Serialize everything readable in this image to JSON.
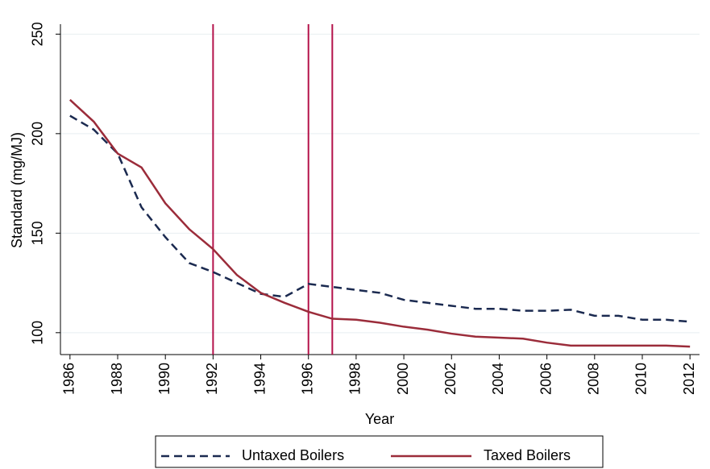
{
  "chart_data": {
    "type": "line",
    "x_label": "Year",
    "y_label": "Standard (mg/MJ)",
    "x": [
      1986,
      1987,
      1988,
      1989,
      1990,
      1991,
      1992,
      1993,
      1994,
      1995,
      1996,
      1997,
      1998,
      1999,
      2000,
      2001,
      2002,
      2003,
      2004,
      2005,
      2006,
      2007,
      2008,
      2009,
      2010,
      2011,
      2012
    ],
    "series": [
      {
        "name": "Untaxed Boilers",
        "color": "#1b2a50",
        "dash": true,
        "values": [
          209,
          202,
          190,
          163,
          148,
          135,
          130.5,
          125,
          119.5,
          118,
          124.5,
          123,
          121.5,
          120,
          116.5,
          115,
          113.5,
          112,
          112,
          111,
          111,
          111.5,
          108.5,
          108.5,
          106.5,
          106.5,
          105.5
        ]
      },
      {
        "name": "Taxed Boilers",
        "color": "#9b2c3a",
        "dash": false,
        "values": [
          217,
          206,
          190,
          183,
          165,
          152,
          142,
          129,
          120,
          115,
          110.5,
          107,
          106.5,
          105,
          103,
          101.5,
          99.5,
          98,
          97.5,
          97,
          95,
          93.5,
          93.5,
          93.5,
          93.5,
          93.5,
          93
        ]
      }
    ],
    "vlines": [
      1992,
      1996,
      1997
    ],
    "vline_color": "#b4124a",
    "xlim": [
      1985.6,
      2012.4
    ],
    "xticks": [
      1986,
      1988,
      1990,
      1992,
      1994,
      1996,
      1998,
      2000,
      2002,
      2004,
      2006,
      2008,
      2010,
      2012
    ],
    "ylim": [
      89,
      255
    ],
    "yticks": [
      100,
      150,
      200,
      250
    ],
    "grid": true,
    "legend": "bottom"
  }
}
